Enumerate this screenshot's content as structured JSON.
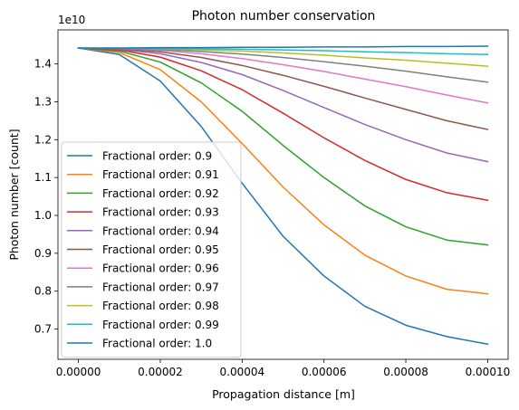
{
  "chart_data": {
    "type": "line",
    "title": "Photon number conservation",
    "xlabel": "Propagation distance [m]",
    "ylabel": "Photon number [count]",
    "y_multiplier_label": "1e10",
    "xlim": [
      -5e-06,
      0.000105
    ],
    "ylim": [
      0.62,
      1.49
    ],
    "xticks": [
      0,
      2e-05,
      4e-05,
      6e-05,
      8e-05,
      0.0001
    ],
    "xtick_labels": [
      "0.00000",
      "0.00002",
      "0.00004",
      "0.00006",
      "0.00008",
      "0.00010"
    ],
    "yticks": [
      0.7,
      0.8,
      0.9,
      1.0,
      1.1,
      1.2,
      1.3,
      1.4
    ],
    "ytick_labels": [
      "0.7",
      "0.8",
      "0.9",
      "1.0",
      "1.1",
      "1.2",
      "1.3",
      "1.4"
    ],
    "grid": false,
    "legend_position": "lower-left",
    "x": [
      0,
      1e-05,
      2e-05,
      3e-05,
      4e-05,
      5e-05,
      6e-05,
      7e-05,
      8e-05,
      9e-05,
      0.0001
    ],
    "series": [
      {
        "name": "Fractional order: 0.9",
        "color": "#1f77b4",
        "values": [
          1.442,
          1.425,
          1.355,
          1.235,
          1.085,
          0.945,
          0.84,
          0.76,
          0.71,
          0.68,
          0.66
        ]
      },
      {
        "name": "Fractional order: 0.91",
        "color": "#ff7f0e",
        "values": [
          1.442,
          1.43,
          1.385,
          1.3,
          1.19,
          1.075,
          0.975,
          0.895,
          0.84,
          0.805,
          0.793
        ]
      },
      {
        "name": "Fractional order: 0.92",
        "color": "#2ca02c",
        "values": [
          1.442,
          1.434,
          1.405,
          1.35,
          1.275,
          1.185,
          1.1,
          1.025,
          0.97,
          0.935,
          0.922
        ]
      },
      {
        "name": "Fractional order: 0.93",
        "color": "#d62728",
        "values": [
          1.442,
          1.437,
          1.418,
          1.382,
          1.332,
          1.27,
          1.205,
          1.145,
          1.095,
          1.06,
          1.04
        ]
      },
      {
        "name": "Fractional order: 0.94",
        "color": "#9467bd",
        "values": [
          1.442,
          1.439,
          1.427,
          1.404,
          1.372,
          1.33,
          1.285,
          1.24,
          1.2,
          1.165,
          1.142
        ]
      },
      {
        "name": "Fractional order: 0.95",
        "color": "#8c564b",
        "values": [
          1.442,
          1.44,
          1.432,
          1.417,
          1.396,
          1.37,
          1.341,
          1.31,
          1.28,
          1.25,
          1.227
        ]
      },
      {
        "name": "Fractional order: 0.96",
        "color": "#e377c2",
        "values": [
          1.442,
          1.441,
          1.436,
          1.427,
          1.414,
          1.398,
          1.38,
          1.36,
          1.34,
          1.318,
          1.297
        ]
      },
      {
        "name": "Fractional order: 0.97",
        "color": "#7f7f7f",
        "values": [
          1.442,
          1.441,
          1.438,
          1.433,
          1.426,
          1.417,
          1.406,
          1.394,
          1.381,
          1.366,
          1.352
        ]
      },
      {
        "name": "Fractional order: 0.98",
        "color": "#bcbd22",
        "values": [
          1.442,
          1.442,
          1.44,
          1.437,
          1.434,
          1.429,
          1.423,
          1.416,
          1.41,
          1.402,
          1.394
        ]
      },
      {
        "name": "Fractional order: 0.99",
        "color": "#17becf",
        "values": [
          1.442,
          1.442,
          1.441,
          1.44,
          1.439,
          1.437,
          1.435,
          1.432,
          1.43,
          1.427,
          1.425
        ]
      },
      {
        "name": "Fractional order: 1.0",
        "color": "#1f77b4",
        "values": [
          1.442,
          1.442,
          1.443,
          1.443,
          1.444,
          1.444,
          1.445,
          1.445,
          1.446,
          1.446,
          1.447
        ]
      }
    ]
  }
}
